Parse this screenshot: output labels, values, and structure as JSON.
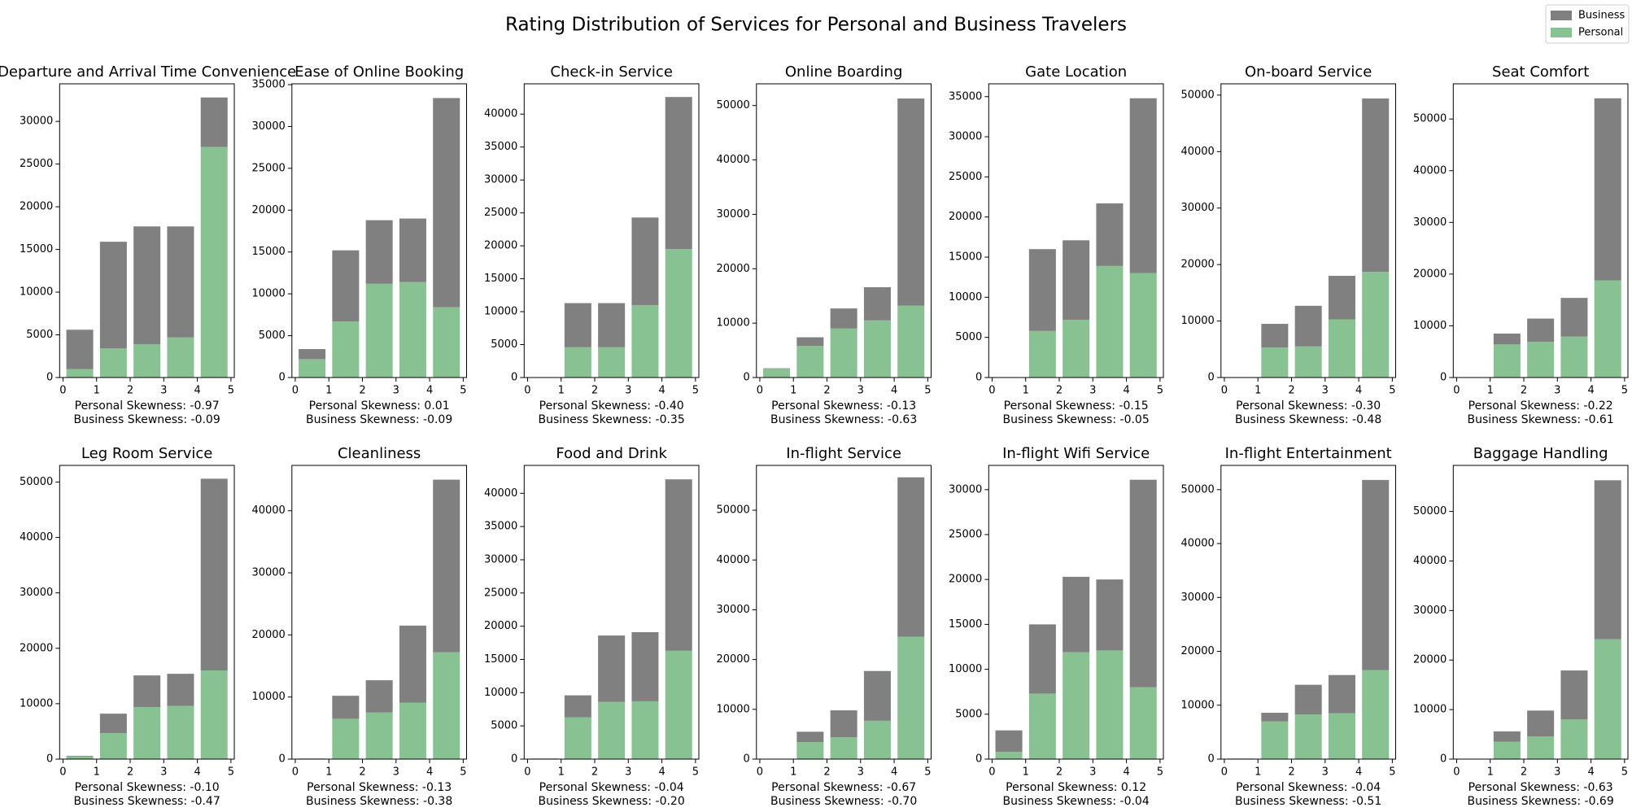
{
  "title": "Rating Distribution of Services for Personal and Business Travelers",
  "chart_data": [
    {
      "type": "histogram",
      "title": "Departure and Arrival Time Convenience",
      "bins": [
        0,
        1,
        2,
        3,
        4,
        5
      ],
      "xlim": [
        -0.1,
        5.1
      ],
      "xticks": [
        0,
        1,
        2,
        3,
        4,
        5
      ],
      "ylim": [
        0,
        34400
      ],
      "yticks": [
        0,
        5000,
        10000,
        15000,
        20000,
        25000,
        30000
      ],
      "stacked": true,
      "series": [
        {
          "name": "Personal",
          "color": "#88c292",
          "values": [
            1000,
            3400,
            3900,
            4700,
            27000
          ]
        },
        {
          "name": "Business",
          "color": "#808080",
          "values": [
            4600,
            12500,
            13800,
            13000,
            5800
          ]
        }
      ],
      "annotations": [
        "Personal Skewness: -0.97",
        "Business Skewness: -0.09"
      ]
    },
    {
      "type": "histogram",
      "title": "Ease of Online Booking",
      "bins": [
        0,
        1,
        2,
        3,
        4,
        5
      ],
      "xlim": [
        -0.1,
        5.1
      ],
      "xticks": [
        0,
        1,
        2,
        3,
        4,
        5
      ],
      "ylim": [
        0,
        35100
      ],
      "yticks": [
        0,
        5000,
        10000,
        15000,
        20000,
        25000,
        30000,
        35000
      ],
      "stacked": true,
      "series": [
        {
          "name": "Personal",
          "color": "#88c292",
          "values": [
            2200,
            6700,
            11200,
            11400,
            8400
          ]
        },
        {
          "name": "Business",
          "color": "#808080",
          "values": [
            1200,
            8500,
            7600,
            7600,
            25000
          ]
        }
      ],
      "annotations": [
        "Personal Skewness: 0.01",
        "Business Skewness: -0.09"
      ]
    },
    {
      "type": "histogram",
      "title": "Check-in Service",
      "bins": [
        0,
        1,
        2,
        3,
        4,
        5
      ],
      "xlim": [
        -0.1,
        5.1
      ],
      "xticks": [
        0,
        1,
        2,
        3,
        4,
        5
      ],
      "ylim": [
        0,
        44600
      ],
      "yticks": [
        0,
        5000,
        10000,
        15000,
        20000,
        25000,
        30000,
        35000,
        40000
      ],
      "stacked": true,
      "series": [
        {
          "name": "Personal",
          "color": "#88c292",
          "values": [
            0,
            4600,
            4600,
            11000,
            19500
          ]
        },
        {
          "name": "Business",
          "color": "#808080",
          "values": [
            0,
            6700,
            6700,
            13300,
            23100
          ]
        }
      ],
      "annotations": [
        "Personal Skewness: -0.40",
        "Business Skewness: -0.35"
      ]
    },
    {
      "type": "histogram",
      "title": "Online Boarding",
      "bins": [
        0,
        1,
        2,
        3,
        4,
        5
      ],
      "xlim": [
        -0.1,
        5.1
      ],
      "xticks": [
        0,
        1,
        2,
        3,
        4,
        5
      ],
      "ylim": [
        0,
        54000
      ],
      "yticks": [
        0,
        10000,
        20000,
        30000,
        40000,
        50000
      ],
      "stacked": true,
      "series": [
        {
          "name": "Personal",
          "color": "#88c292",
          "values": [
            1600,
            5800,
            9000,
            10500,
            13200
          ]
        },
        {
          "name": "Business",
          "color": "#808080",
          "values": [
            100,
            1600,
            3700,
            6100,
            38100
          ]
        }
      ],
      "annotations": [
        "Personal Skewness: -0.13",
        "Business Skewness: -0.63"
      ]
    },
    {
      "type": "histogram",
      "title": "Gate Location",
      "bins": [
        0,
        1,
        2,
        3,
        4,
        5
      ],
      "xlim": [
        -0.1,
        5.1
      ],
      "xticks": [
        0,
        1,
        2,
        3,
        4,
        5
      ],
      "ylim": [
        0,
        36600
      ],
      "yticks": [
        0,
        5000,
        10000,
        15000,
        20000,
        25000,
        30000,
        35000
      ],
      "stacked": true,
      "series": [
        {
          "name": "Personal",
          "color": "#88c292",
          "values": [
            0,
            5800,
            7200,
            13900,
            13000
          ]
        },
        {
          "name": "Business",
          "color": "#808080",
          "values": [
            0,
            10200,
            9900,
            7800,
            21800
          ]
        }
      ],
      "annotations": [
        "Personal Skewness: -0.15",
        "Business Skewness: -0.05"
      ]
    },
    {
      "type": "histogram",
      "title": "On-board Service",
      "bins": [
        0,
        1,
        2,
        3,
        4,
        5
      ],
      "xlim": [
        -0.1,
        5.1
      ],
      "xticks": [
        0,
        1,
        2,
        3,
        4,
        5
      ],
      "ylim": [
        0,
        52000
      ],
      "yticks": [
        0,
        10000,
        20000,
        30000,
        40000,
        50000
      ],
      "stacked": true,
      "series": [
        {
          "name": "Personal",
          "color": "#88c292",
          "values": [
            0,
            5300,
            5500,
            10300,
            18700
          ]
        },
        {
          "name": "Business",
          "color": "#808080",
          "values": [
            0,
            4200,
            7200,
            7700,
            30700
          ]
        }
      ],
      "annotations": [
        "Personal Skewness: -0.30",
        "Business Skewness: -0.48"
      ]
    },
    {
      "type": "histogram",
      "title": "Seat Comfort",
      "bins": [
        0,
        1,
        2,
        3,
        4,
        5
      ],
      "xlim": [
        -0.1,
        5.1
      ],
      "xticks": [
        0,
        1,
        2,
        3,
        4,
        5
      ],
      "ylim": [
        0,
        56800
      ],
      "yticks": [
        0,
        10000,
        20000,
        30000,
        40000,
        50000
      ],
      "stacked": true,
      "series": [
        {
          "name": "Personal",
          "color": "#88c292",
          "values": [
            0,
            6400,
            6900,
            7900,
            18800
          ]
        },
        {
          "name": "Business",
          "color": "#808080",
          "values": [
            0,
            2100,
            4500,
            7500,
            35200
          ]
        }
      ],
      "annotations": [
        "Personal Skewness: -0.22",
        "Business Skewness: -0.61"
      ]
    },
    {
      "type": "histogram",
      "title": "Leg Room Service",
      "bins": [
        0,
        1,
        2,
        3,
        4,
        5
      ],
      "xlim": [
        -0.1,
        5.1
      ],
      "xticks": [
        0,
        1,
        2,
        3,
        4,
        5
      ],
      "ylim": [
        0,
        53000
      ],
      "yticks": [
        0,
        10000,
        20000,
        30000,
        40000,
        50000
      ],
      "stacked": true,
      "series": [
        {
          "name": "Personal",
          "color": "#88c292",
          "values": [
            500,
            4700,
            9400,
            9600,
            16000
          ]
        },
        {
          "name": "Business",
          "color": "#808080",
          "values": [
            100,
            3500,
            5700,
            5800,
            34600
          ]
        }
      ],
      "annotations": [
        "Personal Skewness: -0.10",
        "Business Skewness: -0.47"
      ]
    },
    {
      "type": "histogram",
      "title": "Cleanliness",
      "bins": [
        0,
        1,
        2,
        3,
        4,
        5
      ],
      "xlim": [
        -0.1,
        5.1
      ],
      "xticks": [
        0,
        1,
        2,
        3,
        4,
        5
      ],
      "ylim": [
        0,
        47300
      ],
      "yticks": [
        0,
        10000,
        20000,
        30000,
        40000
      ],
      "stacked": true,
      "series": [
        {
          "name": "Personal",
          "color": "#88c292",
          "values": [
            100,
            6500,
            7500,
            9100,
            17200
          ]
        },
        {
          "name": "Business",
          "color": "#808080",
          "values": [
            0,
            3700,
            5200,
            12400,
            27800
          ]
        }
      ],
      "annotations": [
        "Personal Skewness: -0.13",
        "Business Skewness: -0.38"
      ]
    },
    {
      "type": "histogram",
      "title": "Food and Drink",
      "bins": [
        0,
        1,
        2,
        3,
        4,
        5
      ],
      "xlim": [
        -0.1,
        5.1
      ],
      "xticks": [
        0,
        1,
        2,
        3,
        4,
        5
      ],
      "ylim": [
        0,
        44200
      ],
      "yticks": [
        0,
        5000,
        10000,
        15000,
        20000,
        25000,
        30000,
        35000,
        40000
      ],
      "stacked": true,
      "series": [
        {
          "name": "Personal",
          "color": "#88c292",
          "values": [
            100,
            6300,
            8600,
            8700,
            16300
          ]
        },
        {
          "name": "Business",
          "color": "#808080",
          "values": [
            0,
            3300,
            10000,
            10400,
            25800
          ]
        }
      ],
      "annotations": [
        "Personal Skewness: -0.04",
        "Business Skewness: -0.20"
      ]
    },
    {
      "type": "histogram",
      "title": "In-flight Service",
      "bins": [
        0,
        1,
        2,
        3,
        4,
        5
      ],
      "xlim": [
        -0.1,
        5.1
      ],
      "xticks": [
        0,
        1,
        2,
        3,
        4,
        5
      ],
      "ylim": [
        0,
        59000
      ],
      "yticks": [
        0,
        10000,
        20000,
        30000,
        40000,
        50000
      ],
      "stacked": true,
      "series": [
        {
          "name": "Personal",
          "color": "#88c292",
          "values": [
            0,
            3400,
            4400,
            7700,
            24600
          ]
        },
        {
          "name": "Business",
          "color": "#808080",
          "values": [
            0,
            2100,
            5400,
            10000,
            32000
          ]
        }
      ],
      "annotations": [
        "Personal Skewness: -0.67",
        "Business Skewness: -0.70"
      ]
    },
    {
      "type": "histogram",
      "title": "In-flight Wifi Service",
      "bins": [
        0,
        1,
        2,
        3,
        4,
        5
      ],
      "xlim": [
        -0.1,
        5.1
      ],
      "xticks": [
        0,
        1,
        2,
        3,
        4,
        5
      ],
      "ylim": [
        0,
        32700
      ],
      "yticks": [
        0,
        5000,
        10000,
        15000,
        20000,
        25000,
        30000
      ],
      "stacked": true,
      "series": [
        {
          "name": "Personal",
          "color": "#88c292",
          "values": [
            800,
            7300,
            11900,
            12100,
            8000
          ]
        },
        {
          "name": "Business",
          "color": "#808080",
          "values": [
            2400,
            7700,
            8400,
            7900,
            23100
          ]
        }
      ],
      "annotations": [
        "Personal Skewness: 0.12",
        "Business Skewness: -0.04"
      ]
    },
    {
      "type": "histogram",
      "title": "In-flight Entertainment",
      "bins": [
        0,
        1,
        2,
        3,
        4,
        5
      ],
      "xlim": [
        -0.1,
        5.1
      ],
      "xticks": [
        0,
        1,
        2,
        3,
        4,
        5
      ],
      "ylim": [
        0,
        54500
      ],
      "yticks": [
        0,
        10000,
        20000,
        30000,
        40000,
        50000
      ],
      "stacked": true,
      "series": [
        {
          "name": "Personal",
          "color": "#88c292",
          "values": [
            0,
            7000,
            8300,
            8500,
            16500
          ]
        },
        {
          "name": "Business",
          "color": "#808080",
          "values": [
            100,
            1600,
            5500,
            7100,
            35300
          ]
        }
      ],
      "annotations": [
        "Personal Skewness: -0.04",
        "Business Skewness: -0.51"
      ]
    },
    {
      "type": "histogram",
      "title": "Baggage Handling",
      "bins": [
        0,
        1,
        2,
        3,
        4,
        5
      ],
      "xlim": [
        -0.1,
        5.1
      ],
      "xticks": [
        0,
        1,
        2,
        3,
        4,
        5
      ],
      "ylim": [
        0,
        59300
      ],
      "yticks": [
        0,
        10000,
        20000,
        30000,
        40000,
        50000
      ],
      "stacked": true,
      "series": [
        {
          "name": "Personal",
          "color": "#88c292",
          "values": [
            0,
            3500,
            4600,
            8000,
            24200
          ]
        },
        {
          "name": "Business",
          "color": "#808080",
          "values": [
            0,
            2100,
            5200,
            9900,
            32100
          ]
        }
      ],
      "annotations": [
        "Personal Skewness: -0.63",
        "Business Skewness: -0.69"
      ]
    }
  ]
}
